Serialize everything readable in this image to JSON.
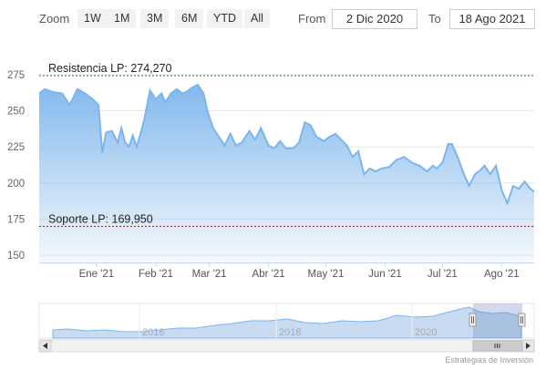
{
  "toolbar": {
    "zoom_label": "Zoom",
    "zoom_buttons": [
      "1W",
      "1M",
      "3M",
      "6M",
      "YTD",
      "All"
    ],
    "from_label": "From",
    "from_value": "2 Dic 2020",
    "to_label": "To",
    "to_value": "18 Ago 2021"
  },
  "credit": "Estrategias de Inversión",
  "colors": {
    "series_line": "#7cb5ec",
    "series_fill_top": "#7cb5ec",
    "resistance_line": "#2e7d32",
    "support_line": "#8b1a1a",
    "grid": "#e6e6e6",
    "navigator_mask": "#c6d3e6"
  },
  "chart_data": {
    "type": "area",
    "ylim": [
      145,
      285
    ],
    "yticks": [
      150,
      175,
      200,
      225,
      250,
      275
    ],
    "x_range": [
      "2020-12-02",
      "2021-08-18"
    ],
    "x_ticks": [
      {
        "date": "2021-01-01",
        "label": "Ene '21"
      },
      {
        "date": "2021-02-01",
        "label": "Feb '21"
      },
      {
        "date": "2021-03-01",
        "label": "Mar '21"
      },
      {
        "date": "2021-04-01",
        "label": "Abr '21"
      },
      {
        "date": "2021-05-01",
        "label": "May '21"
      },
      {
        "date": "2021-06-01",
        "label": "Jun '21"
      },
      {
        "date": "2021-07-01",
        "label": "Jul '21"
      },
      {
        "date": "2021-08-01",
        "label": "Ago '21"
      }
    ],
    "grid": true,
    "legend": "none",
    "series": [
      {
        "x": [
          "2020-12-02",
          "2020-12-05",
          "2020-12-09",
          "2020-12-14",
          "2020-12-18",
          "2020-12-22",
          "2020-12-26",
          "2020-12-30",
          "2021-01-02",
          "2021-01-04",
          "2021-01-06",
          "2021-01-09",
          "2021-01-12",
          "2021-01-14",
          "2021-01-16",
          "2021-01-18",
          "2021-01-20",
          "2021-01-22",
          "2021-01-24",
          "2021-01-26",
          "2021-01-29",
          "2021-02-01",
          "2021-02-04",
          "2021-02-06",
          "2021-02-09",
          "2021-02-12",
          "2021-02-15",
          "2021-02-17",
          "2021-02-20",
          "2021-02-23",
          "2021-02-26",
          "2021-02-28",
          "2021-03-03",
          "2021-03-06",
          "2021-03-09",
          "2021-03-12",
          "2021-03-15",
          "2021-03-18",
          "2021-03-22",
          "2021-03-25",
          "2021-03-28",
          "2021-04-01",
          "2021-04-04",
          "2021-04-07",
          "2021-04-10",
          "2021-04-14",
          "2021-04-17",
          "2021-04-20",
          "2021-04-23",
          "2021-04-26",
          "2021-04-30",
          "2021-05-03",
          "2021-05-06",
          "2021-05-09",
          "2021-05-12",
          "2021-05-15",
          "2021-05-18",
          "2021-05-21",
          "2021-05-24",
          "2021-05-27",
          "2021-05-30",
          "2021-06-03",
          "2021-06-07",
          "2021-06-11",
          "2021-06-15",
          "2021-06-19",
          "2021-06-23",
          "2021-06-26",
          "2021-06-28",
          "2021-07-01",
          "2021-07-04",
          "2021-07-06",
          "2021-07-09",
          "2021-07-12",
          "2021-07-15",
          "2021-07-18",
          "2021-07-21",
          "2021-07-23",
          "2021-07-26",
          "2021-07-29",
          "2021-08-01",
          "2021-08-04",
          "2021-08-07",
          "2021-08-10",
          "2021-08-13",
          "2021-08-16",
          "2021-08-18"
        ],
        "y": [
          262,
          265,
          263,
          262,
          254,
          265,
          262,
          258,
          254,
          221,
          235,
          236,
          228,
          238,
          228,
          225,
          233,
          225,
          234,
          244,
          264,
          258,
          262,
          256,
          262,
          265,
          262,
          263,
          266,
          268,
          262,
          250,
          238,
          232,
          226,
          234,
          226,
          228,
          236,
          230,
          238,
          226,
          224,
          229,
          224,
          224,
          228,
          242,
          240,
          232,
          229,
          232,
          234,
          230,
          226,
          218,
          222,
          206,
          210,
          208,
          210,
          211,
          216,
          218,
          214,
          212,
          208,
          212,
          210,
          214,
          227,
          227,
          218,
          207,
          198,
          206,
          209,
          212,
          206,
          212,
          195,
          186,
          198,
          196,
          201,
          196,
          194
        ]
      }
    ],
    "annotations": [
      {
        "label": "Resistencia LP: 274,270",
        "value": 274.27
      },
      {
        "label": "Soporte LP: 169,950",
        "value": 169.95
      }
    ],
    "navigator": {
      "xlabels": [
        "2016",
        "2018",
        "2020"
      ],
      "selection": [
        "2020-12-02",
        "2021-08-18"
      ]
    }
  }
}
